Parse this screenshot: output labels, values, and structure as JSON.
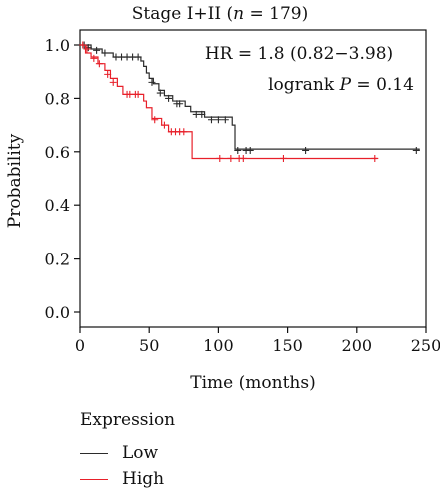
{
  "chart_data": {
    "type": "line",
    "title": "Stage I+II (n = 179)",
    "title_parts": {
      "prefix": "Stage I+II (",
      "n_italic": "n",
      "suffix": " = 179)"
    },
    "xlabel": "Time (months)",
    "ylabel": "Probability",
    "xlim": [
      0,
      250
    ],
    "ylim": [
      0,
      1
    ],
    "xticks": [
      "0",
      "50",
      "100",
      "150",
      "200",
      "250"
    ],
    "yticks": [
      "0.0",
      "0.2",
      "0.4",
      "0.6",
      "0.8",
      "1.0"
    ],
    "annotations": {
      "hr": "HR = 1.8 (0.82−3.98)",
      "logrank_prefix": "logrank ",
      "logrank_p": "P",
      "logrank_suffix": " = 0.14"
    },
    "legend": {
      "title": "Expression",
      "placement": "bottom-left"
    },
    "series": [
      {
        "name": "Low",
        "color": "#2b2b2b",
        "steps": [
          [
            0,
            1.0
          ],
          [
            8,
            0.985
          ],
          [
            16,
            0.97
          ],
          [
            24,
            0.955
          ],
          [
            44,
            0.94
          ],
          [
            46,
            0.92
          ],
          [
            48,
            0.895
          ],
          [
            50,
            0.875
          ],
          [
            53,
            0.855
          ],
          [
            57,
            0.83
          ],
          [
            61,
            0.81
          ],
          [
            67,
            0.79
          ],
          [
            76,
            0.77
          ],
          [
            80,
            0.75
          ],
          [
            90,
            0.73
          ],
          [
            110,
            0.7
          ],
          [
            112,
            0.61
          ],
          [
            245,
            0.605
          ]
        ],
        "censors": [
          [
            3,
            1.0
          ],
          [
            6,
            0.99
          ],
          [
            12,
            0.98
          ],
          [
            18,
            0.97
          ],
          [
            26,
            0.955
          ],
          [
            30,
            0.955
          ],
          [
            34,
            0.955
          ],
          [
            38,
            0.955
          ],
          [
            42,
            0.955
          ],
          [
            52,
            0.86
          ],
          [
            58,
            0.82
          ],
          [
            64,
            0.8
          ],
          [
            70,
            0.78
          ],
          [
            72,
            0.78
          ],
          [
            84,
            0.74
          ],
          [
            88,
            0.74
          ],
          [
            95,
            0.72
          ],
          [
            100,
            0.72
          ],
          [
            105,
            0.72
          ],
          [
            114,
            0.605
          ],
          [
            120,
            0.605
          ],
          [
            123,
            0.605
          ],
          [
            163,
            0.605
          ],
          [
            243,
            0.605
          ]
        ]
      },
      {
        "name": "High",
        "color": "#e8202a",
        "steps": [
          [
            0,
            1.0
          ],
          [
            4,
            0.97
          ],
          [
            8,
            0.955
          ],
          [
            13,
            0.93
          ],
          [
            18,
            0.905
          ],
          [
            22,
            0.875
          ],
          [
            27,
            0.845
          ],
          [
            31,
            0.815
          ],
          [
            46,
            0.79
          ],
          [
            48,
            0.765
          ],
          [
            52,
            0.725
          ],
          [
            59,
            0.7
          ],
          [
            64,
            0.675
          ],
          [
            81,
            0.575
          ],
          [
            215,
            0.575
          ]
        ],
        "censors": [
          [
            2,
            1.0
          ],
          [
            5,
            0.985
          ],
          [
            10,
            0.95
          ],
          [
            14,
            0.93
          ],
          [
            20,
            0.89
          ],
          [
            24,
            0.86
          ],
          [
            34,
            0.815
          ],
          [
            36,
            0.815
          ],
          [
            40,
            0.815
          ],
          [
            42,
            0.815
          ],
          [
            54,
            0.72
          ],
          [
            61,
            0.7
          ],
          [
            66,
            0.675
          ],
          [
            69,
            0.675
          ],
          [
            72,
            0.675
          ],
          [
            75,
            0.675
          ],
          [
            101,
            0.575
          ],
          [
            109,
            0.575
          ],
          [
            115,
            0.575
          ],
          [
            118,
            0.575
          ],
          [
            147,
            0.575
          ],
          [
            213,
            0.575
          ]
        ]
      }
    ]
  }
}
